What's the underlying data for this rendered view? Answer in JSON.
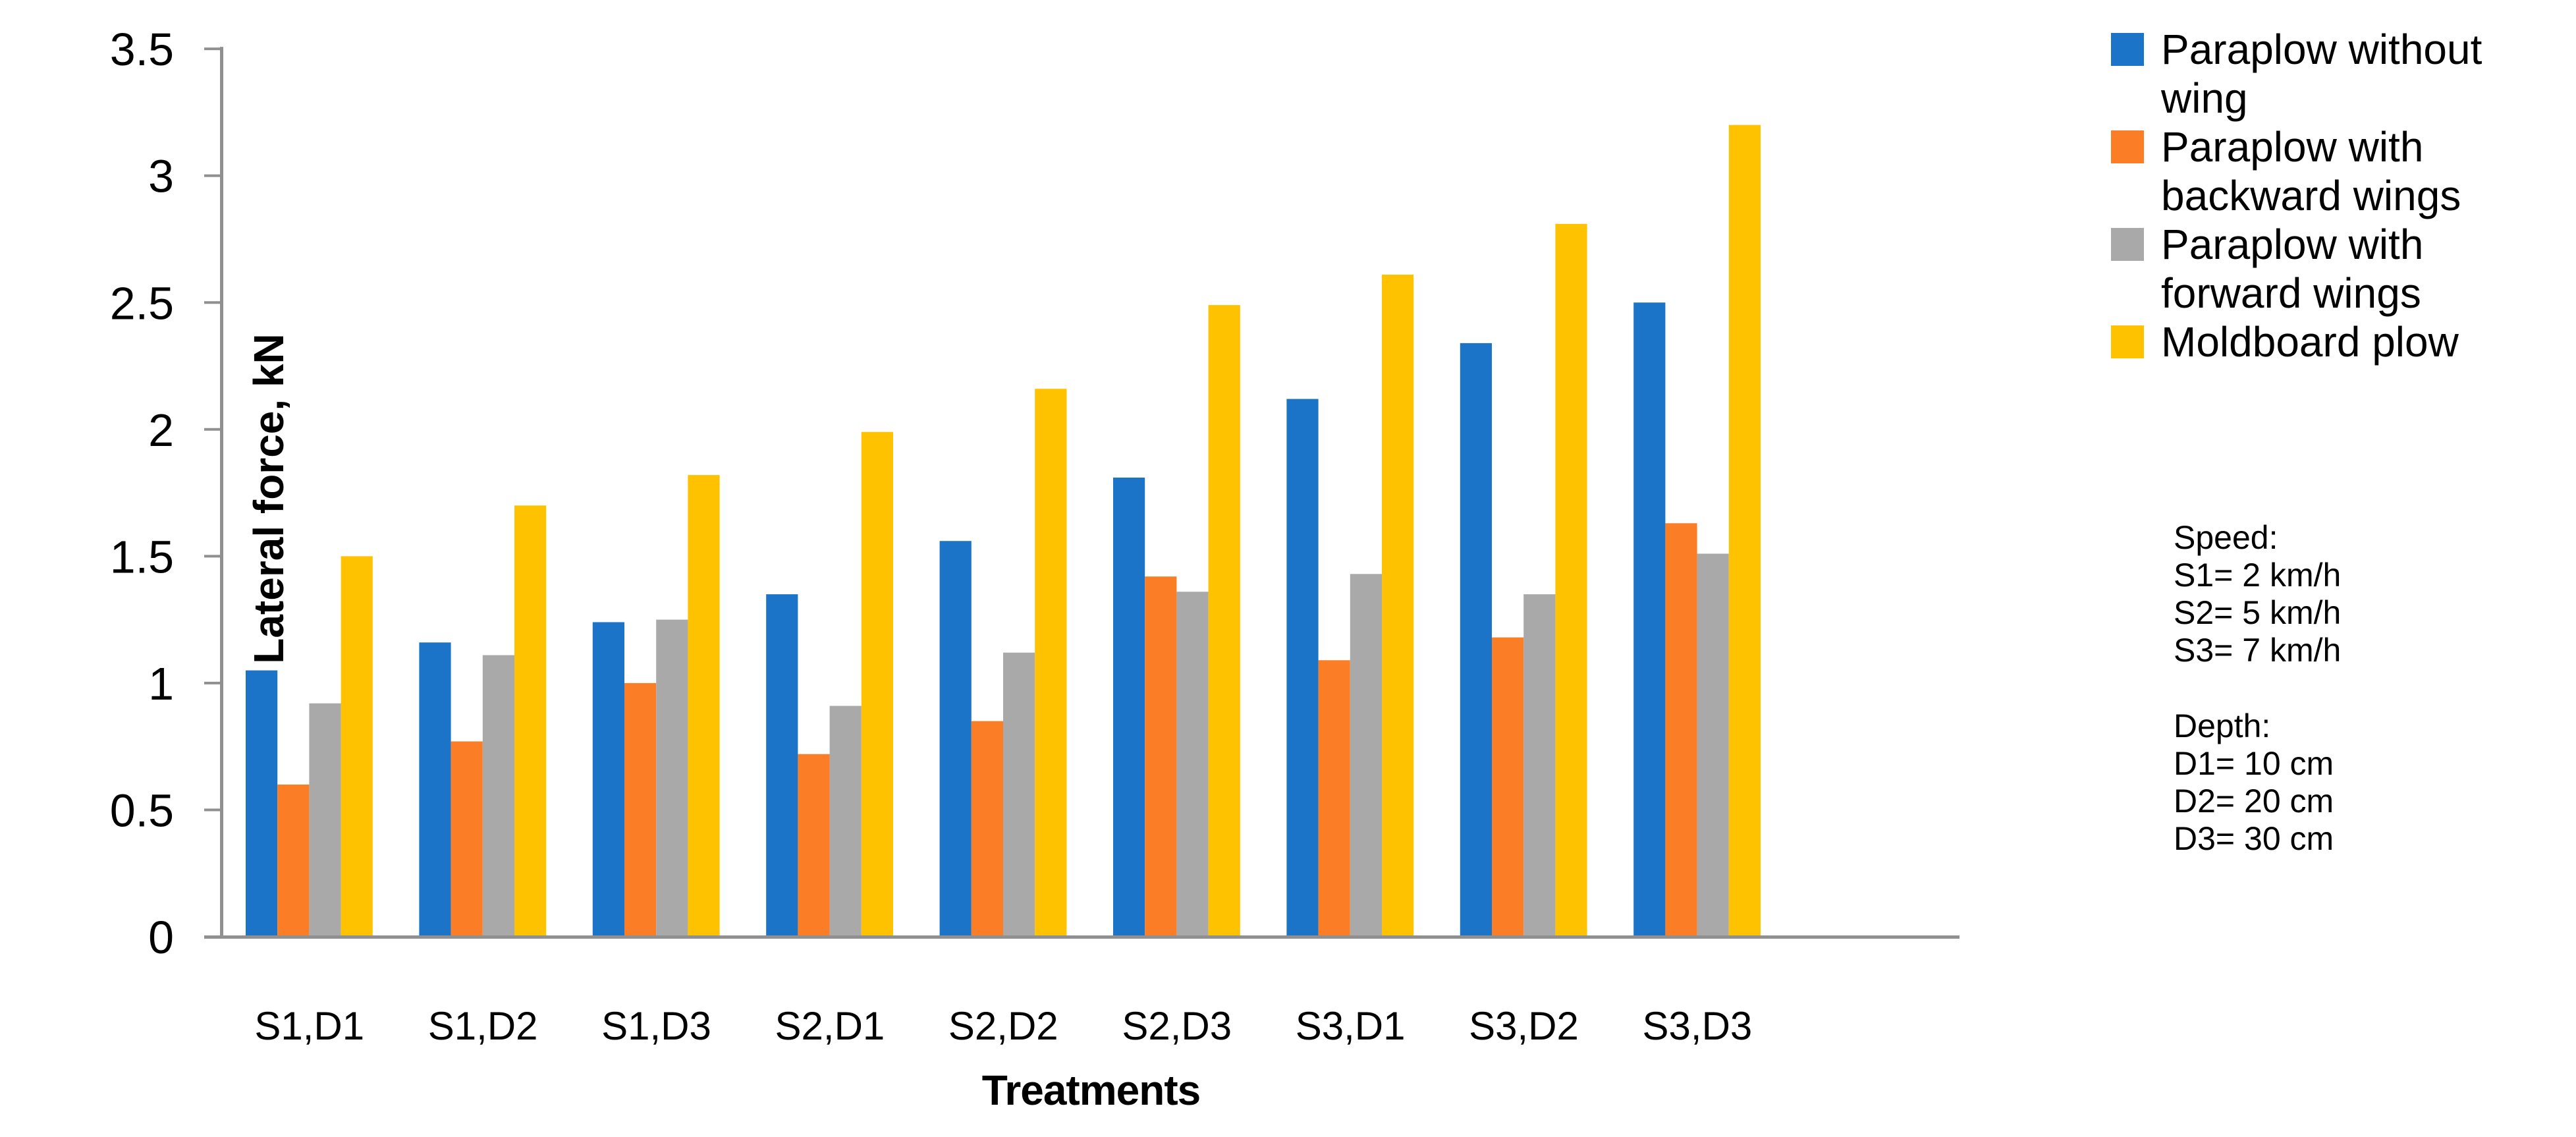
{
  "chart_data": {
    "type": "bar",
    "title": "",
    "xlabel": "Treatments",
    "ylabel": "Lateral force, kN",
    "ylim": [
      0,
      3.5
    ],
    "ytick_step": 0.5,
    "yticks": [
      "0",
      "0.5",
      "1",
      "1.5",
      "2",
      "2.5",
      "3",
      "3.5"
    ],
    "grid": false,
    "legend_position": "right-top",
    "categories": [
      "S1,D1",
      "S1,D2",
      "S1,D3",
      "S2,D1",
      "S2,D2",
      "S2,D3",
      "S3,D1",
      "S3,D2",
      "S3,D3"
    ],
    "series": [
      {
        "name": "Paraplow without wing",
        "color": "#1B74C8",
        "values": [
          1.05,
          1.16,
          1.24,
          1.35,
          1.56,
          1.81,
          2.12,
          2.34,
          2.5
        ]
      },
      {
        "name": "Paraplow with backward wings",
        "color": "#FB7D25",
        "values": [
          0.6,
          0.77,
          1.0,
          0.72,
          0.85,
          1.42,
          1.09,
          1.18,
          1.63
        ]
      },
      {
        "name": "Paraplow with forward wings",
        "color": "#A9A9A9",
        "values": [
          0.92,
          1.11,
          1.25,
          0.91,
          1.12,
          1.36,
          1.43,
          1.35,
          1.51
        ]
      },
      {
        "name": "Moldboard plow",
        "color": "#FFC200",
        "values": [
          1.5,
          1.7,
          1.82,
          1.99,
          2.16,
          2.49,
          2.61,
          2.81,
          3.2
        ]
      }
    ],
    "axis_color": "#909090",
    "text_color": "#000000"
  },
  "annotations": {
    "speed": {
      "title": "Speed:",
      "lines": [
        "S1= 2 km/h",
        "S2= 5 km/h",
        "S3= 7 km/h"
      ]
    },
    "depth": {
      "title": "Depth:",
      "lines": [
        "D1= 10 cm",
        "D2= 20 cm",
        "D3= 30 cm"
      ]
    }
  }
}
